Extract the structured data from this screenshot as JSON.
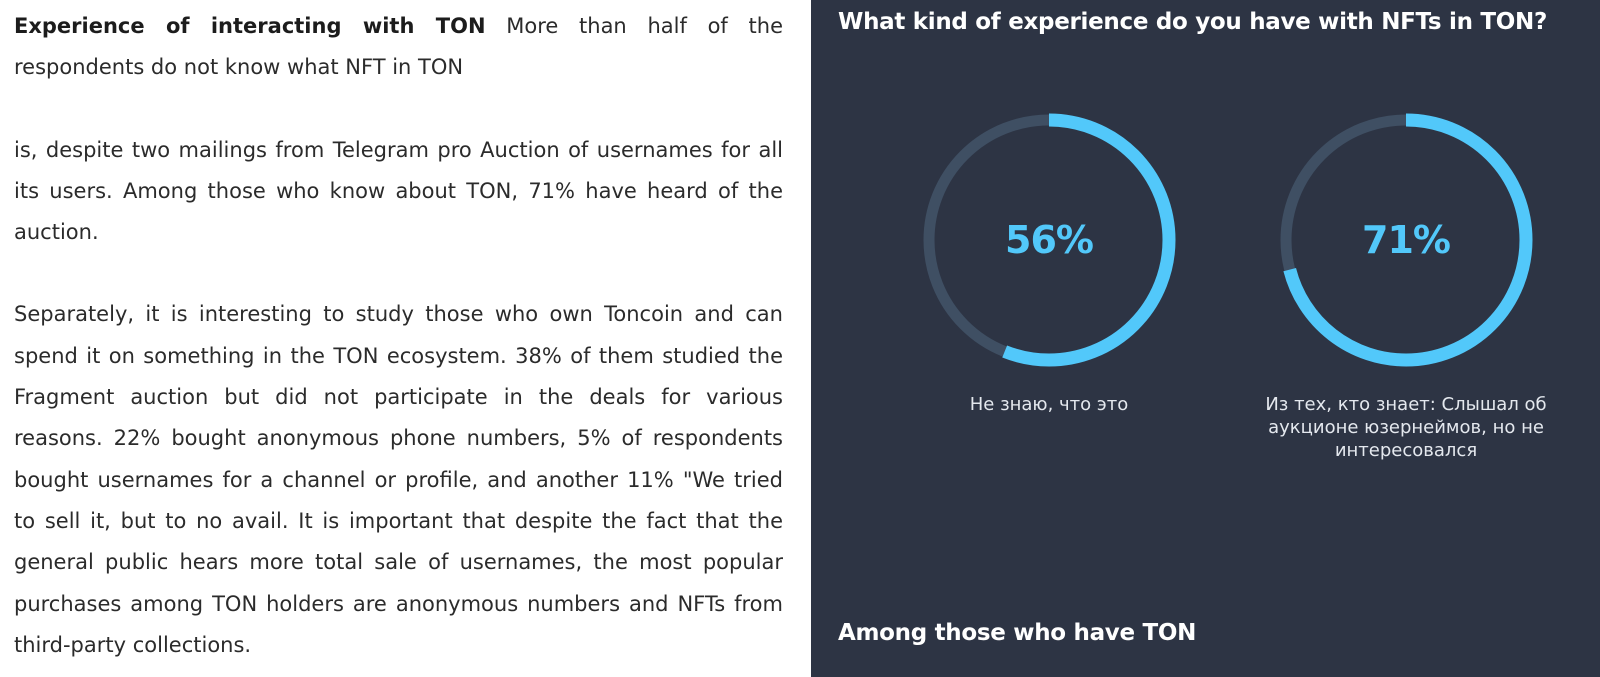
{
  "article": {
    "lead": "Experience of interacting with TON",
    "paragraph_1": "More than half of the respondents do not know what NFT in TON",
    "paragraph_2": "is, despite two mailings from Telegram pro Auction of usernames for all its users. Among those who know about TON, 71% have heard of the auction.",
    "paragraph_3": "Separately, it is interesting to study those who own Toncoin and can spend it on something in the TON ecosystem. 38% of them studied the Fragment auction but did not participate in the deals for various reasons. 22% bought anonymous phone numbers, 5% of respondents bought usernames for a channel or profile, and another 11% \"We tried to sell it, but to no avail. It is important that despite the fact that the general public hears more total sale of usernames, the most popular purchases among TON holders are anonymous numbers and NFTs from third-party collections."
  },
  "slide": {
    "title": "What kind of experience do you have with NFTs in TON?",
    "footer": "Among those who have TON",
    "colors": {
      "background": "#2d3444",
      "ring_fill": "#52c8fa",
      "ring_track": "#3f4f63"
    }
  },
  "chart_data": {
    "type": "pie",
    "variant": "donut",
    "title": "What kind of experience do you have with NFTs in TON?",
    "items": [
      {
        "label": "Не знаю, что это",
        "value": 56,
        "value_label": "56%"
      },
      {
        "label": "Из тех, кто знает: Слышал об аукционе юзернеймов, но не интересовался",
        "value": 71,
        "value_label": "71%"
      }
    ]
  }
}
